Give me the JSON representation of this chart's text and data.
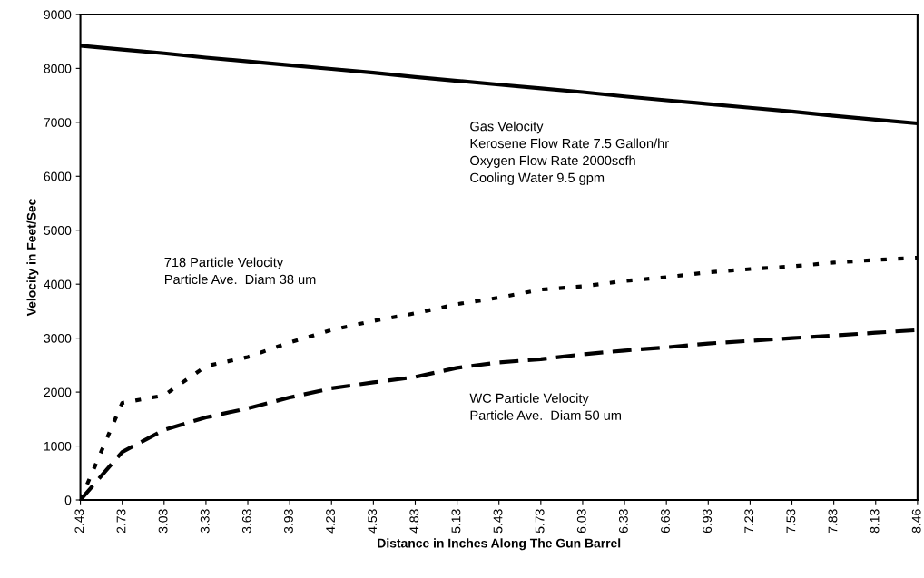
{
  "chart_data": {
    "type": "line",
    "xlabel": "Distance in Inches Along The Gun Barrel",
    "ylabel": "Velocity in Feet/Sec",
    "categories": [
      "2.43",
      "2.73",
      "3.03",
      "3.33",
      "3.63",
      "3.93",
      "4.23",
      "4.53",
      "4.83",
      "5.13",
      "5.43",
      "5.73",
      "6.03",
      "6.33",
      "6.63",
      "6.93",
      "7.23",
      "7.53",
      "7.83",
      "8.13",
      "8.46"
    ],
    "series": [
      {
        "color": "#000000",
        "line_style": "solid",
        "values": [
          8420,
          8350,
          8280,
          8200,
          8130,
          8060,
          7990,
          7920,
          7840,
          7770,
          7700,
          7630,
          7560,
          7480,
          7410,
          7340,
          7270,
          7200,
          7120,
          7050,
          6980
        ]
      },
      {
        "color": "#000000",
        "line_style": "dotted",
        "values": [
          0,
          1800,
          1940,
          2480,
          2650,
          2920,
          3150,
          3320,
          3460,
          3630,
          3750,
          3900,
          3960,
          4060,
          4130,
          4220,
          4280,
          4330,
          4400,
          4450,
          4490
        ]
      },
      {
        "color": "#000000",
        "line_style": "dashed",
        "values": [
          0,
          890,
          1300,
          1530,
          1700,
          1900,
          2070,
          2180,
          2280,
          2450,
          2550,
          2610,
          2700,
          2770,
          2830,
          2900,
          2950,
          3000,
          3050,
          3100,
          3150
        ]
      }
    ],
    "ylim": [
      0,
      9000
    ],
    "yticks": [
      0,
      1000,
      2000,
      3000,
      4000,
      5000,
      6000,
      7000,
      8000,
      9000
    ],
    "grid": false,
    "annotations": [
      "Gas Velocity\nKerosene Flow Rate 7.5 Gallon/hr\nOxygen Flow Rate 2000scfh\nCooling Water 9.5 gpm",
      "718 Particle Velocity\nParticle Ave.  Diam 38 um",
      "WC Particle Velocity\nParticle Ave.  Diam 50 um"
    ]
  }
}
